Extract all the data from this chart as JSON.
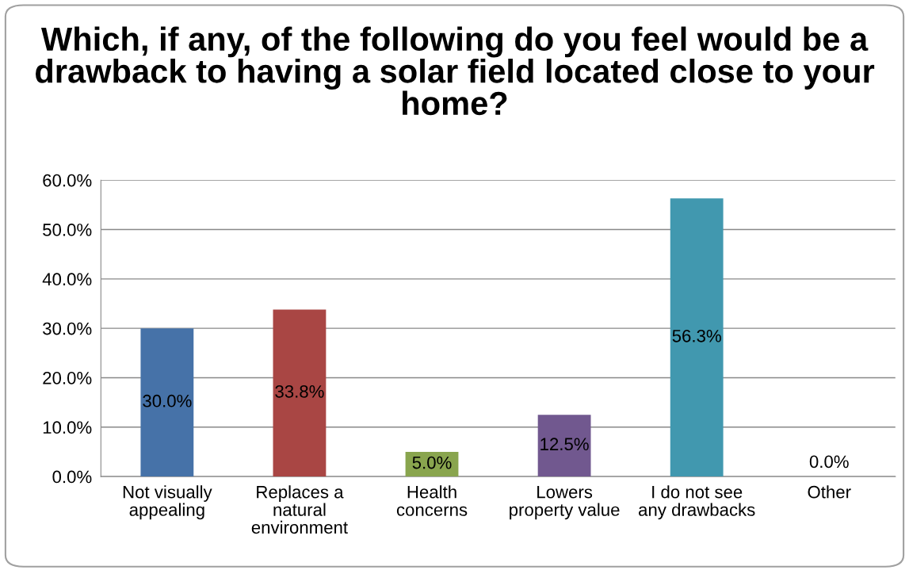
{
  "chart_data": {
    "type": "bar",
    "title": "Which, if any, of the following do you feel would be a drawback to having a solar field located close to your home?",
    "categories": [
      "Not visually appealing",
      "Replaces a natural environment",
      "Health concerns",
      "Lowers property value",
      "I do not see any drawbacks",
      "Other"
    ],
    "values": [
      30.0,
      33.8,
      5.0,
      12.5,
      56.3,
      0.0
    ],
    "colors": [
      "#4672a8",
      "#a94644",
      "#89a54e",
      "#71588f",
      "#4198af",
      "#db843d"
    ],
    "value_labels": [
      "30.0%",
      "33.8%",
      "5.0%",
      "12.5%",
      "56.3%",
      "0.0%"
    ],
    "ylim": [
      0,
      60
    ],
    "yticks": [
      {
        "value": 0,
        "label": "0.0%"
      },
      {
        "value": 10,
        "label": "10.0%"
      },
      {
        "value": 20,
        "label": "20.0%"
      },
      {
        "value": 30,
        "label": "30.0%"
      },
      {
        "value": 40,
        "label": "40.0%"
      },
      {
        "value": 50,
        "label": "50.0%"
      },
      {
        "value": 60,
        "label": "60.0%"
      }
    ],
    "grid": "y"
  }
}
